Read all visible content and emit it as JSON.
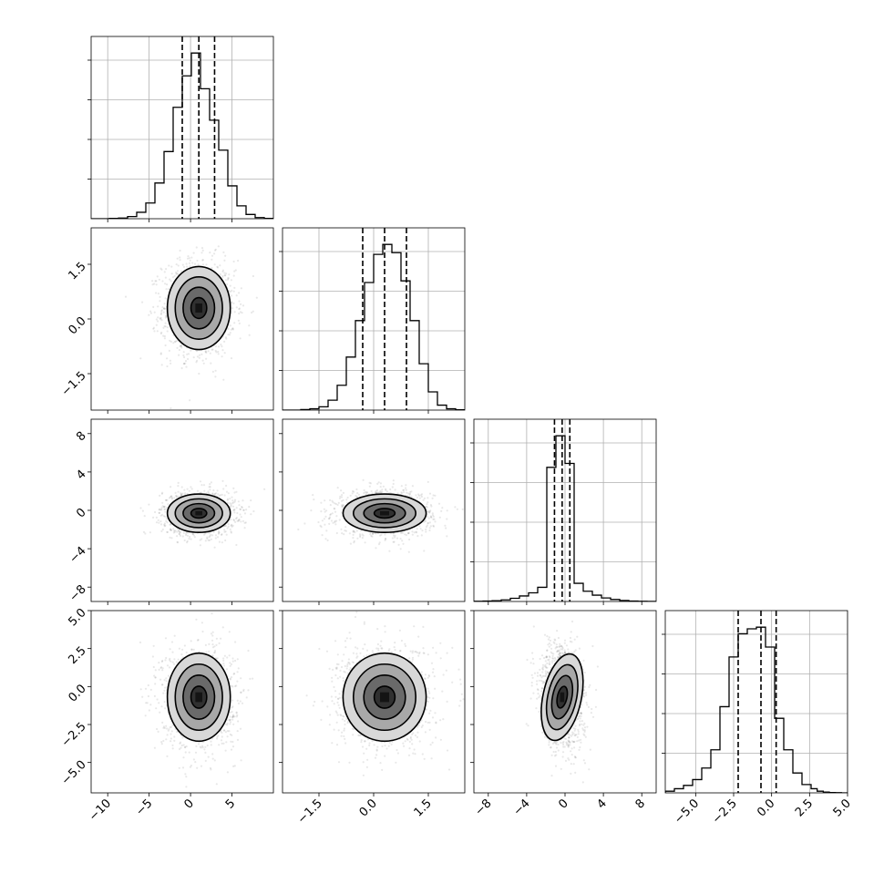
{
  "chart_data": {
    "type": "corner",
    "parameters": [
      {
        "id": "p0",
        "mean": 1.0,
        "sd": 1.9,
        "axis_range": [
          -12,
          10
        ],
        "ticks": [
          -10,
          -5,
          0,
          5
        ],
        "tick_labels": [
          "−10",
          "−5",
          "0",
          "5"
        ],
        "quantiles": [
          -1.0,
          1.0,
          2.9
        ]
      },
      {
        "id": "p1",
        "mean": 0.3,
        "sd": 0.57,
        "axis_range": [
          -2.5,
          2.5
        ],
        "ticks": [
          -1.5,
          0.0,
          1.5
        ],
        "tick_labels": [
          "−1.5",
          "0.0",
          "1.5"
        ],
        "quantiles": [
          -0.3,
          0.3,
          0.9
        ]
      },
      {
        "id": "p2",
        "mean": -0.3,
        "sd": 1.0,
        "axis_range": [
          -9.5,
          9.5
        ],
        "ticks": [
          -8,
          -4,
          0,
          4,
          8
        ],
        "tick_labels": [
          "−8",
          "−4",
          "0",
          "4",
          "8"
        ],
        "quantiles": [
          -1.1,
          -0.3,
          0.5
        ]
      },
      {
        "id": "p3",
        "mean": -0.7,
        "sd": 1.45,
        "axis_range": [
          -7,
          5
        ],
        "ticks": [
          -5.0,
          -2.5,
          0.0,
          2.5,
          5.0
        ],
        "tick_labels": [
          "−5.0",
          "−2.5",
          "0.0",
          "2.5",
          "5.0"
        ],
        "quantiles": [
          -2.2,
          -0.7,
          0.3
        ]
      }
    ],
    "histograms": [
      {
        "param": 0,
        "bin_edges": [
          -12.0,
          -10.9,
          -9.8,
          -8.7,
          -7.6,
          -6.5,
          -5.4,
          -4.3,
          -3.2,
          -2.1,
          -1.0,
          0.1,
          1.2,
          2.3,
          3.4,
          4.5,
          5.6,
          6.7,
          7.8,
          8.9,
          10.0
        ],
        "counts": [
          0,
          0,
          2,
          5,
          15,
          45,
          110,
          250,
          470,
          780,
          1000,
          1160,
          910,
          690,
          480,
          230,
          90,
          30,
          8,
          2
        ]
      },
      {
        "param": 1,
        "bin_edges": [
          -2.5,
          -2.25,
          -2.0,
          -1.75,
          -1.5,
          -1.25,
          -1.0,
          -0.75,
          -0.5,
          -0.25,
          0.0,
          0.25,
          0.5,
          0.75,
          1.0,
          1.25,
          1.5,
          1.75,
          2.0,
          2.25,
          2.5
        ],
        "counts": [
          0,
          0,
          3,
          8,
          20,
          60,
          150,
          320,
          540,
          770,
          940,
          1000,
          950,
          780,
          540,
          280,
          110,
          30,
          8,
          2
        ]
      },
      {
        "param": 2,
        "bin_edges": [
          -9.5,
          -8.55,
          -7.6,
          -6.65,
          -5.7,
          -4.75,
          -3.8,
          -2.85,
          -1.9,
          -0.95,
          0.0,
          0.95,
          1.9,
          2.85,
          3.8,
          4.75,
          5.7,
          6.65,
          7.6,
          8.55,
          9.5
        ],
        "counts": [
          2,
          5,
          10,
          20,
          40,
          70,
          110,
          180,
          1700,
          2100,
          1750,
          230,
          130,
          80,
          45,
          25,
          12,
          6,
          3,
          1
        ]
      },
      {
        "param": 3,
        "bin_edges": [
          -7.0,
          -6.4,
          -5.8,
          -5.2,
          -4.6,
          -4.0,
          -3.4,
          -2.8,
          -2.2,
          -1.6,
          -1.0,
          -0.4,
          0.2,
          0.8,
          1.4,
          2.0,
          2.6,
          3.0,
          3.4,
          3.8,
          4.2,
          4.6,
          5.0
        ],
        "counts": [
          10,
          25,
          45,
          80,
          150,
          260,
          520,
          820,
          960,
          990,
          1000,
          880,
          450,
          260,
          120,
          50,
          25,
          10,
          5,
          2,
          1,
          0
        ]
      }
    ],
    "pairs": [
      {
        "x_param": 0,
        "y_param": 1,
        "correlation": 0.0
      },
      {
        "x_param": 0,
        "y_param": 2,
        "correlation": 0.0
      },
      {
        "x_param": 1,
        "y_param": 2,
        "correlation": 0.0
      },
      {
        "x_param": 0,
        "y_param": 3,
        "correlation": 0.0
      },
      {
        "x_param": 1,
        "y_param": 3,
        "correlation": 0.0
      },
      {
        "x_param": 2,
        "y_param": 3,
        "correlation": -0.15
      }
    ],
    "contour_levels_sigma": [
      0.5,
      1.0,
      1.5,
      2.0
    ],
    "grid": true,
    "colors": {
      "line": "#000000",
      "grid": "#b0b0b0",
      "density_light": "#ffffff",
      "density_dark": "#303030"
    }
  }
}
